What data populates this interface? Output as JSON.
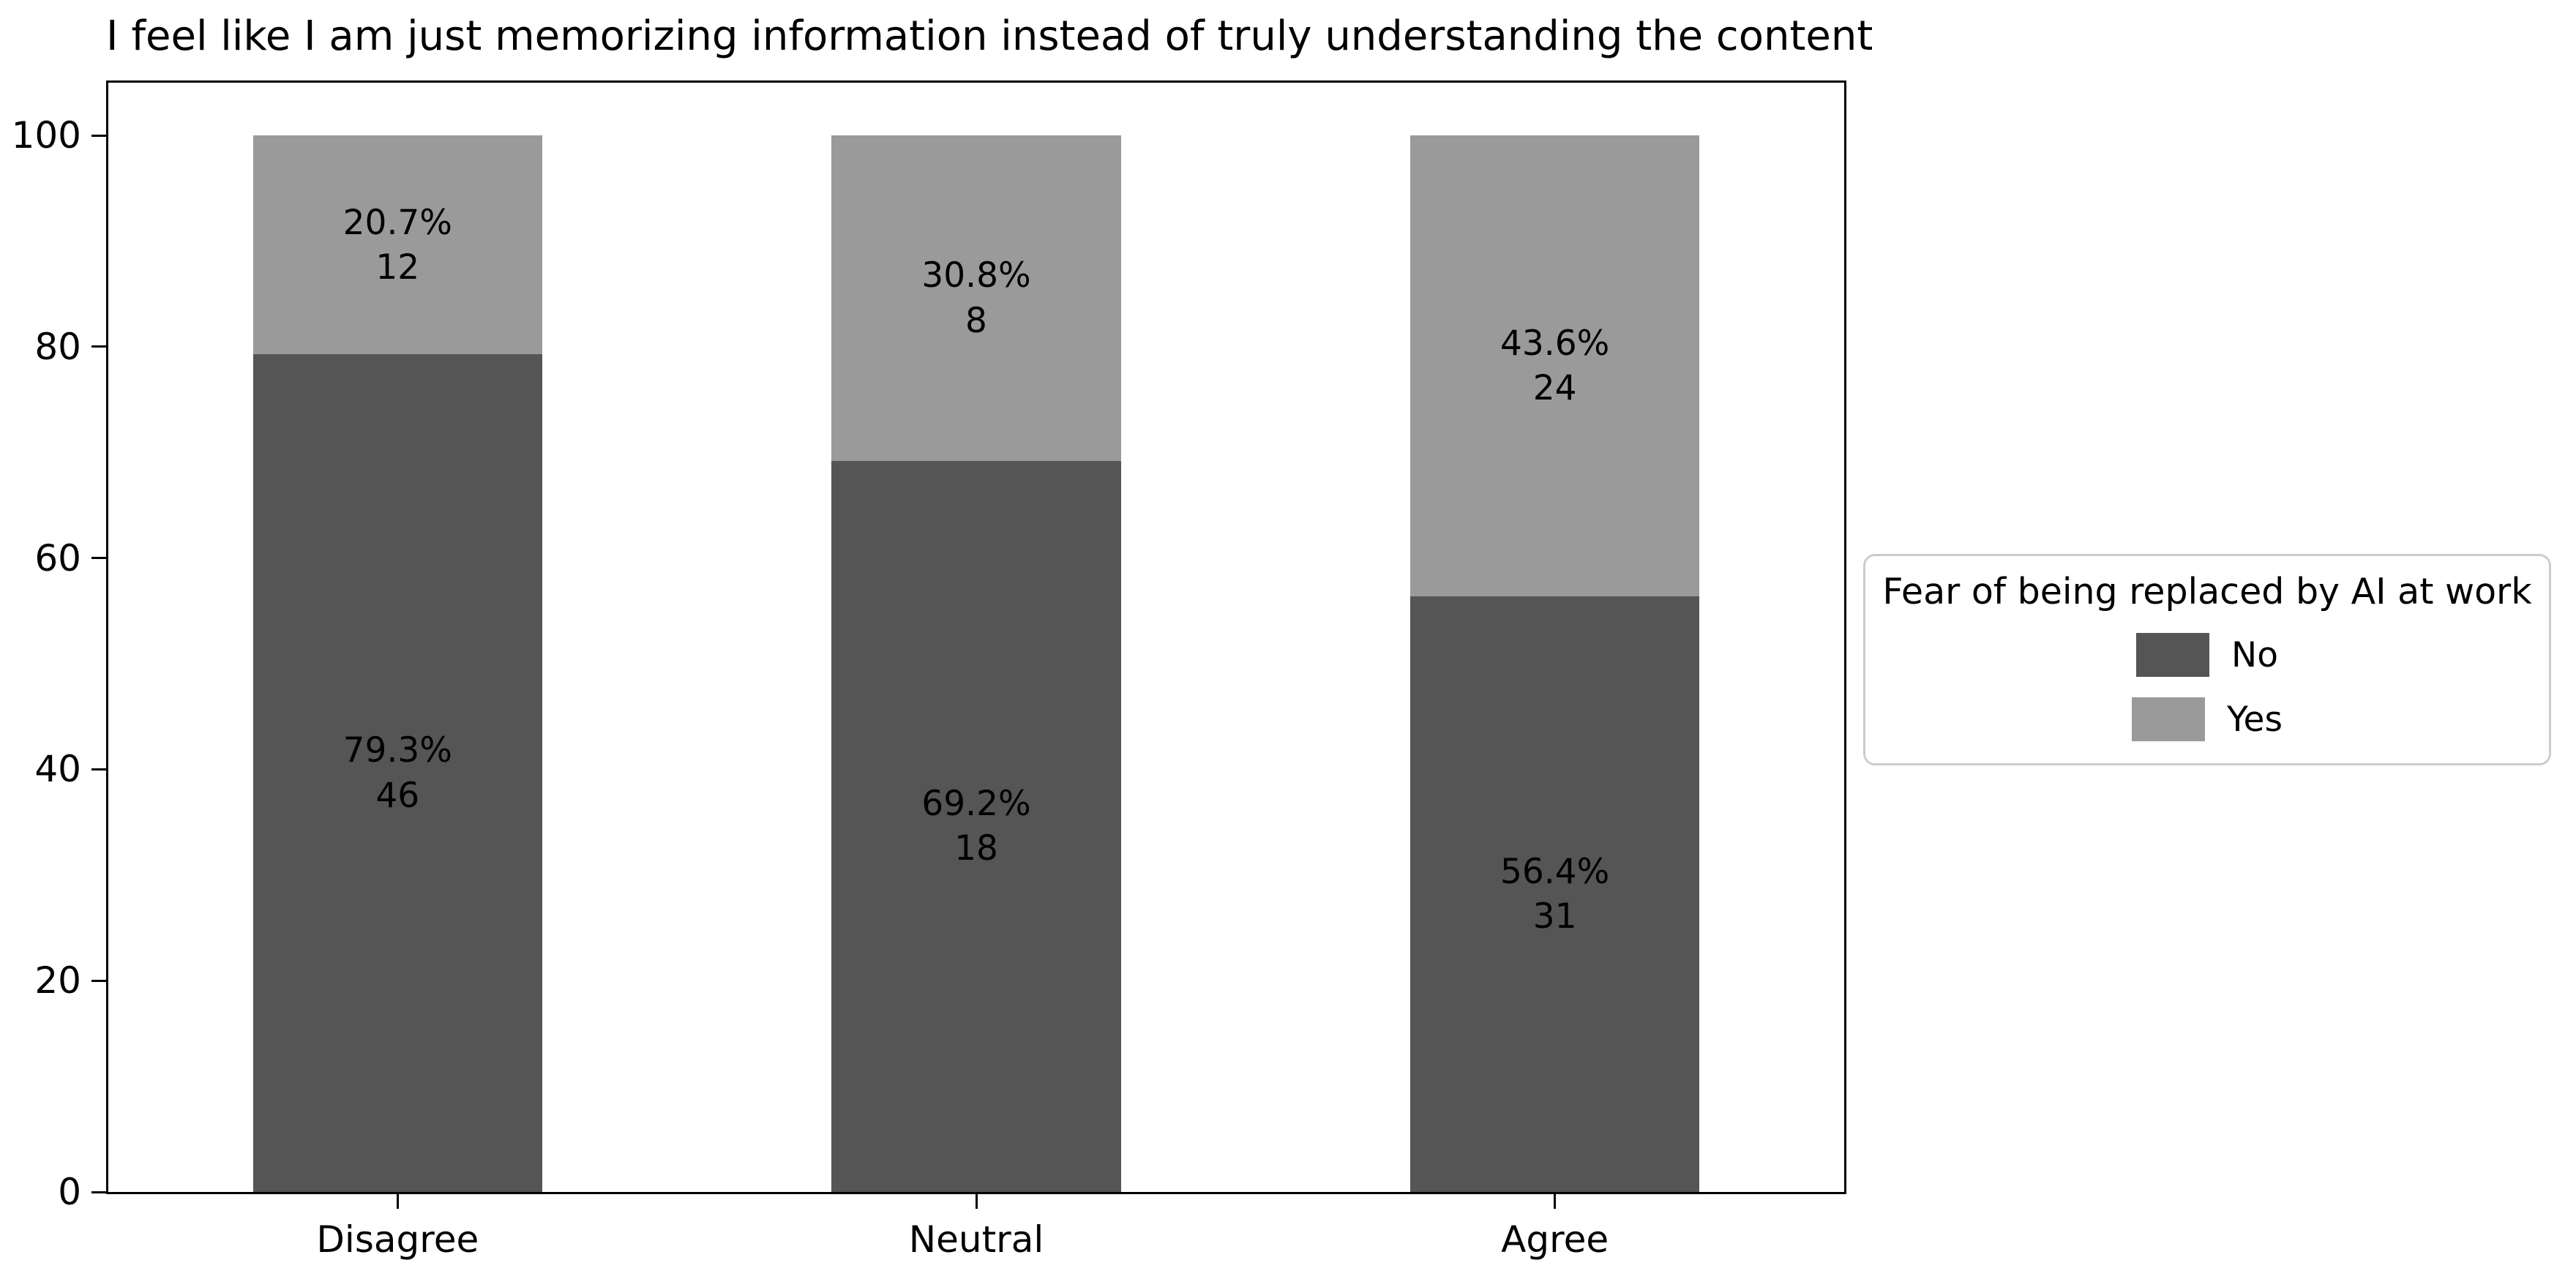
{
  "figure": {
    "background": "#ffffff"
  },
  "chart_data": {
    "type": "bar",
    "stacked": true,
    "title": "I feel like I am just memorizing information instead of truly understanding the content",
    "categories": [
      "Disagree",
      "Neutral",
      "Agree"
    ],
    "series": [
      {
        "name": "No",
        "color": "#555555",
        "percents": [
          79.3,
          69.2,
          56.4
        ],
        "pct_labels": [
          "79.3%",
          "69.2%",
          "56.4%"
        ],
        "counts": [
          46,
          18,
          31
        ]
      },
      {
        "name": "Yes",
        "color": "#9a9a9a",
        "percents": [
          20.7,
          30.8,
          43.6
        ],
        "pct_labels": [
          "20.7%",
          "30.8%",
          "43.6%"
        ],
        "counts": [
          12,
          8,
          24
        ]
      }
    ],
    "xlabel": "",
    "ylabel": "",
    "ylim": [
      0,
      105
    ],
    "yticks": [
      0,
      20,
      40,
      60,
      80,
      100
    ],
    "grid": false,
    "legend": {
      "title": "Fear of being replaced by AI at work",
      "entries": [
        "No",
        "Yes"
      ],
      "position": "outside-center-right"
    }
  },
  "colors": {
    "no_segment": "#555555",
    "yes_segment": "#9a9a9a",
    "spine": "#000000",
    "legend_border": "#cccccc",
    "text": "#000000",
    "background": "#ffffff"
  }
}
